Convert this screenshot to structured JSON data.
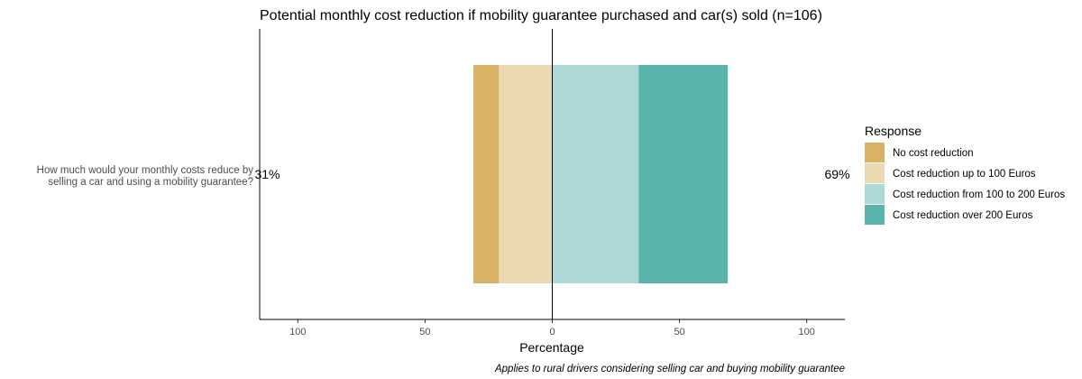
{
  "chart_data": {
    "type": "bar",
    "orientation": "horizontal",
    "stacked": "diverging",
    "title": "Potential monthly cost reduction if mobility guarantee purchased and car(s) sold (n=106)",
    "xlabel": "Percentage",
    "categories": [
      "How much would your monthly costs reduce by selling a car and using a mobility guarantee?"
    ],
    "category_lines": [
      "How much would your monthly costs reduce by",
      "selling a car and using a mobility guarantee?"
    ],
    "xlim": [
      -115,
      115
    ],
    "x_ticks": [
      -100,
      -50,
      0,
      50,
      100
    ],
    "x_tick_labels": [
      "100",
      "50",
      "0",
      "50",
      "100"
    ],
    "series": [
      {
        "name": "No cost reduction",
        "values": [
          10
        ],
        "side": "negative",
        "color": "#d8b365"
      },
      {
        "name": "Cost reduction up to 100 Euros",
        "values": [
          21
        ],
        "side": "negative",
        "color": "#ebd9b2"
      },
      {
        "name": "Cost reduction from 100 to 200 Euros",
        "values": [
          34
        ],
        "side": "positive",
        "color": "#acd9d5"
      },
      {
        "name": "Cost reduction over 200 Euros",
        "values": [
          35
        ],
        "side": "positive",
        "color": "#5ab4ac"
      }
    ],
    "left_total_label": "31%",
    "right_total_label": "69%",
    "legend_title": "Response",
    "legend_position": "right",
    "grid": false,
    "caption": "Applies to rural drivers considering selling car and buying mobility guarantee"
  }
}
